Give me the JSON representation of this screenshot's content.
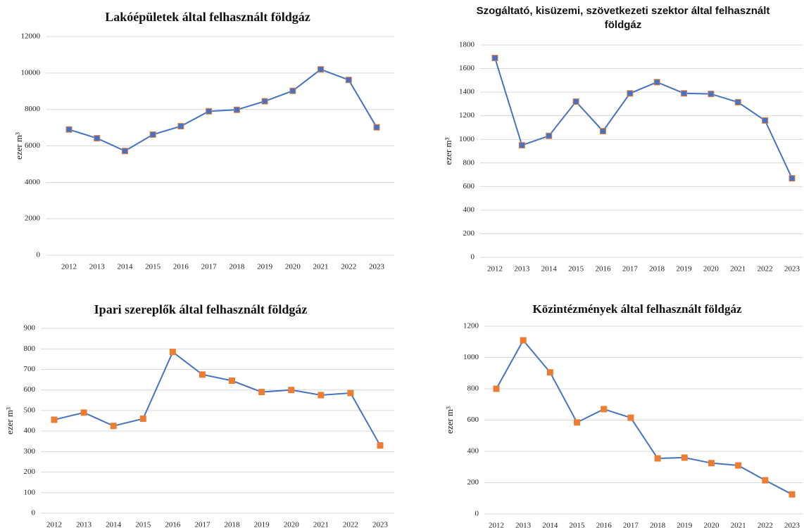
{
  "chart_data": [
    {
      "type": "line",
      "title": "Lakóépületek által felhasznált földgáz",
      "ylabel": "ezer m³",
      "categories": [
        "2012",
        "2013",
        "2014",
        "2015",
        "2016",
        "2017",
        "2018",
        "2019",
        "2020",
        "2021",
        "2022",
        "2023"
      ],
      "values": [
        6900,
        6420,
        5720,
        6620,
        7080,
        7900,
        7980,
        8450,
        9020,
        10200,
        9620,
        7020
      ],
      "color": "#4472c4",
      "marker_color": "#4472c4",
      "ylim": [
        0,
        12000
      ],
      "yticks": [
        0,
        2000,
        4000,
        6000,
        8000,
        10000,
        12000
      ],
      "grid": true
    },
    {
      "type": "line",
      "title": "Szogáltató, kisüzemi, szövetkezeti szektor által felhasznált földgáz",
      "ylabel": "ezer m³",
      "categories": [
        "2012",
        "2013",
        "2014",
        "2015",
        "2016",
        "2017",
        "2018",
        "2019",
        "2020",
        "2021",
        "2022",
        "2023"
      ],
      "values": [
        1690,
        950,
        1030,
        1320,
        1070,
        1390,
        1485,
        1390,
        1385,
        1315,
        1160,
        670
      ],
      "color": "#4472c4",
      "marker_color": "#4472c4",
      "ylim": [
        0,
        1800
      ],
      "yticks": [
        0,
        200,
        400,
        600,
        800,
        1000,
        1200,
        1400,
        1600,
        1800
      ],
      "grid": true
    },
    {
      "type": "line",
      "title": "Ipari szereplők által felhasznált földgáz",
      "ylabel": "ezer m³",
      "categories": [
        "2012",
        "2013",
        "2014",
        "2015",
        "2016",
        "2017",
        "2018",
        "2019",
        "2020",
        "2021",
        "2022",
        "2023"
      ],
      "values": [
        455,
        490,
        425,
        460,
        785,
        675,
        645,
        590,
        600,
        575,
        585,
        330
      ],
      "color": "#4472c4",
      "marker_color": "#ed7d31",
      "ylim": [
        0,
        900
      ],
      "yticks": [
        0,
        100,
        200,
        300,
        400,
        500,
        600,
        700,
        800,
        900
      ],
      "grid": true
    },
    {
      "type": "line",
      "title": "Közintézmények által felhasznált földgáz",
      "ylabel": "ezer m³",
      "categories": [
        "2012",
        "2013",
        "2014",
        "2015",
        "2016",
        "2017",
        "2018",
        "2019",
        "2020",
        "2021",
        "2022",
        "2023"
      ],
      "values": [
        800,
        1110,
        905,
        585,
        670,
        615,
        355,
        360,
        325,
        310,
        215,
        125
      ],
      "color": "#4472c4",
      "marker_color": "#ed7d31",
      "ylim": [
        0,
        1200
      ],
      "yticks": [
        0,
        200,
        400,
        600,
        800,
        1000,
        1200
      ],
      "grid": true
    }
  ]
}
